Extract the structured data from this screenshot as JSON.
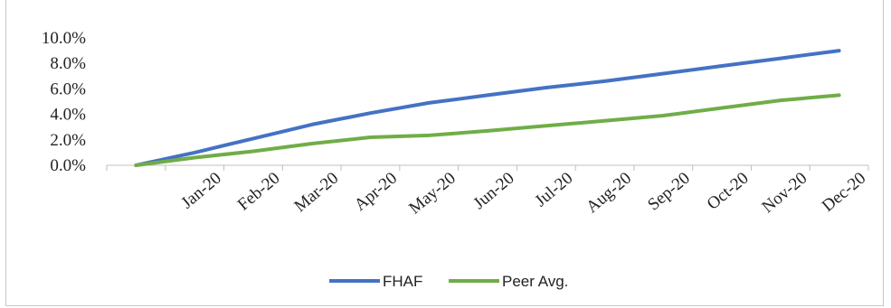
{
  "chart_data": {
    "type": "line",
    "title": "",
    "xlabel": "",
    "ylabel": "",
    "categories": [
      "",
      "Jan-20",
      "Feb-20",
      "Mar-20",
      "Apr-20",
      "May-20",
      "Jun-20",
      "Jul-20",
      "Aug-20",
      "Sep-20",
      "Oct-20",
      "Nov-20",
      "Dec-20"
    ],
    "yticks": [
      "0.0%",
      "2.0%",
      "4.0%",
      "6.0%",
      "8.0%",
      "10.0%"
    ],
    "ylim": [
      0,
      10
    ],
    "grid": false,
    "legend_position": "bottom",
    "series": [
      {
        "name": "FHAF",
        "color": "#4472C4",
        "values": [
          0.0,
          1.0,
          2.1,
          3.2,
          4.1,
          4.9,
          5.5,
          6.1,
          6.6,
          7.2,
          7.8,
          8.4,
          9.0
        ]
      },
      {
        "name": "Peer Avg.",
        "color": "#70AD47",
        "values": [
          0.0,
          0.6,
          1.1,
          1.7,
          2.2,
          2.35,
          2.7,
          3.1,
          3.5,
          3.9,
          4.5,
          5.1,
          5.5
        ]
      }
    ]
  }
}
